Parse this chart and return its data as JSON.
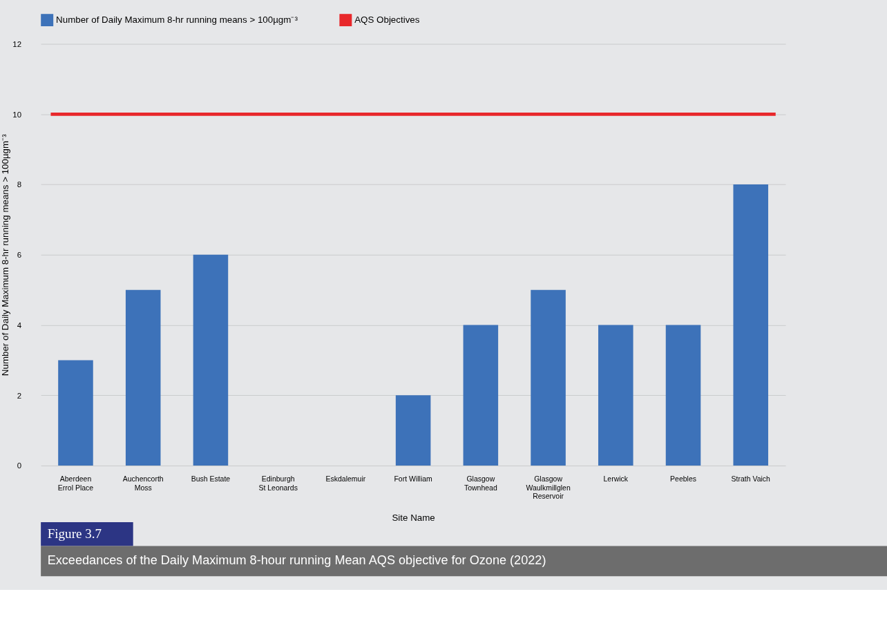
{
  "chart_data": {
    "type": "bar",
    "xlabel": "Site Name",
    "ylabel": "Number of Daily Maximum 8-hr running means > 100µgm⁻³",
    "categories": [
      "Aberdeen\nErrol Place",
      "Auchencorth\nMoss",
      "Bush Estate",
      "Edinburgh\nSt Leonards",
      "Eskdalemuir",
      "Fort William",
      "Glasgow\nTownhead",
      "Glasgow\nWaulkmillglen\nReservoir",
      "Lerwick",
      "Peebles",
      "Strath Vaich"
    ],
    "series": [
      {
        "name": "Number of Daily Maximum 8-hr running means > 100µgm⁻³",
        "color": "#3d72b9",
        "values": [
          3,
          5,
          6,
          0,
          0,
          2,
          4,
          5,
          4,
          4,
          8
        ]
      }
    ],
    "ref_lines": [
      {
        "axis": "y",
        "value": 10,
        "label": "AQS Objectives",
        "color": "#e8282b"
      }
    ],
    "ylim": [
      0,
      12
    ],
    "yticks": [
      0,
      2,
      4,
      6,
      8,
      10,
      12
    ],
    "grid": "y",
    "legend": "top",
    "annotations": [
      "Figure 3.7",
      "Exceedances of the Daily Maximum 8-hour running Mean AQS objective for Ozone (2022)"
    ]
  }
}
